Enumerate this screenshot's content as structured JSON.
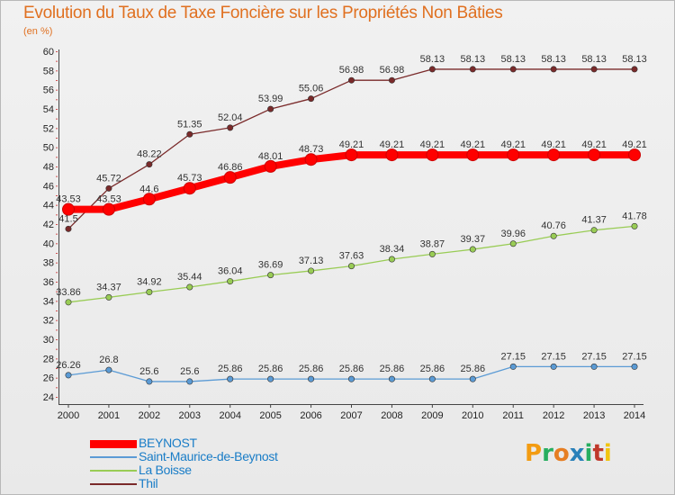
{
  "title": "Evolution du Taux de Taxe Foncière sur les Propriétés Non Bâties",
  "unit": "(en %)",
  "logo": [
    "P",
    "r",
    "o",
    "x",
    "i",
    "t",
    "i"
  ],
  "logo_colors": [
    "#f39c12",
    "#27ae60",
    "#e67e22",
    "#2980b9",
    "#27ae60",
    "#c0392b",
    "#f1c40f"
  ],
  "chart_data": {
    "type": "line",
    "title": "Evolution du Taux de Taxe Foncière sur les Propriétés Non Bâties",
    "ylabel": "(en %)",
    "xlabel": "",
    "x": [
      "2000",
      "2001",
      "2002",
      "2003",
      "2004",
      "2005",
      "2006",
      "2007",
      "2008",
      "2009",
      "2010",
      "2011",
      "2012",
      "2013",
      "2014"
    ],
    "ylim": [
      24,
      60
    ],
    "yticks": [
      24,
      26,
      28,
      30,
      32,
      34,
      36,
      38,
      40,
      42,
      44,
      46,
      48,
      50,
      52,
      54,
      56,
      58,
      60
    ],
    "series": [
      {
        "name": "BEYNOST",
        "color": "#ff0000",
        "values": [
          43.53,
          43.53,
          44.6,
          45.73,
          46.86,
          48.01,
          48.73,
          49.21,
          49.21,
          49.21,
          49.21,
          49.21,
          49.21,
          49.21,
          49.21
        ],
        "labels": [
          "43.53",
          "43.53",
          "44.6",
          "45.73",
          "46.86",
          "48.01",
          "48.73",
          "49.21",
          "49.21",
          "49.21",
          "49.21",
          "49.21",
          "49.21",
          "49.21",
          "49.21"
        ]
      },
      {
        "name": "Saint-Maurice-de-Beynost",
        "color": "#5b9bd5",
        "values": [
          26.26,
          26.8,
          25.6,
          25.6,
          25.86,
          25.86,
          25.86,
          25.86,
          25.86,
          25.86,
          25.86,
          27.15,
          27.15,
          27.15,
          27.15
        ],
        "labels": [
          "26.26",
          "26.8",
          "25.6",
          "25.6",
          "25.86",
          "25.86",
          "25.86",
          "25.86",
          "25.86",
          "25.86",
          "25.86",
          "27.15",
          "27.15",
          "27.15",
          "27.15"
        ]
      },
      {
        "name": "La Boisse",
        "color": "#99cc55",
        "values": [
          33.86,
          34.37,
          34.92,
          35.44,
          36.04,
          36.69,
          37.13,
          37.63,
          38.34,
          38.87,
          39.37,
          39.96,
          40.76,
          41.37,
          41.78
        ],
        "labels": [
          "33.86",
          "34.37",
          "34.92",
          "35.44",
          "36.04",
          "36.69",
          "37.13",
          "37.63",
          "38.34",
          "38.87",
          "39.37",
          "39.96",
          "40.76",
          "41.37",
          "41.78"
        ]
      },
      {
        "name": "Thil",
        "color": "#7a2a2a",
        "values": [
          41.5,
          45.72,
          48.22,
          51.35,
          52.04,
          53.99,
          55.06,
          56.98,
          56.98,
          58.13,
          58.13,
          58.13,
          58.13,
          58.13,
          58.13
        ],
        "labels": [
          "41.5",
          "45.72",
          "48.22",
          "51.35",
          "52.04",
          "53.99",
          "55.06",
          "56.98",
          "56.98",
          "58.13",
          "58.13",
          "58.13",
          "58.13",
          "58.13",
          "58.13"
        ]
      }
    ],
    "legend": [
      "BEYNOST",
      "Saint-Maurice-de-Beynost",
      "La Boisse",
      "Thil"
    ],
    "legend_position": "bottom-left",
    "grid": false
  }
}
